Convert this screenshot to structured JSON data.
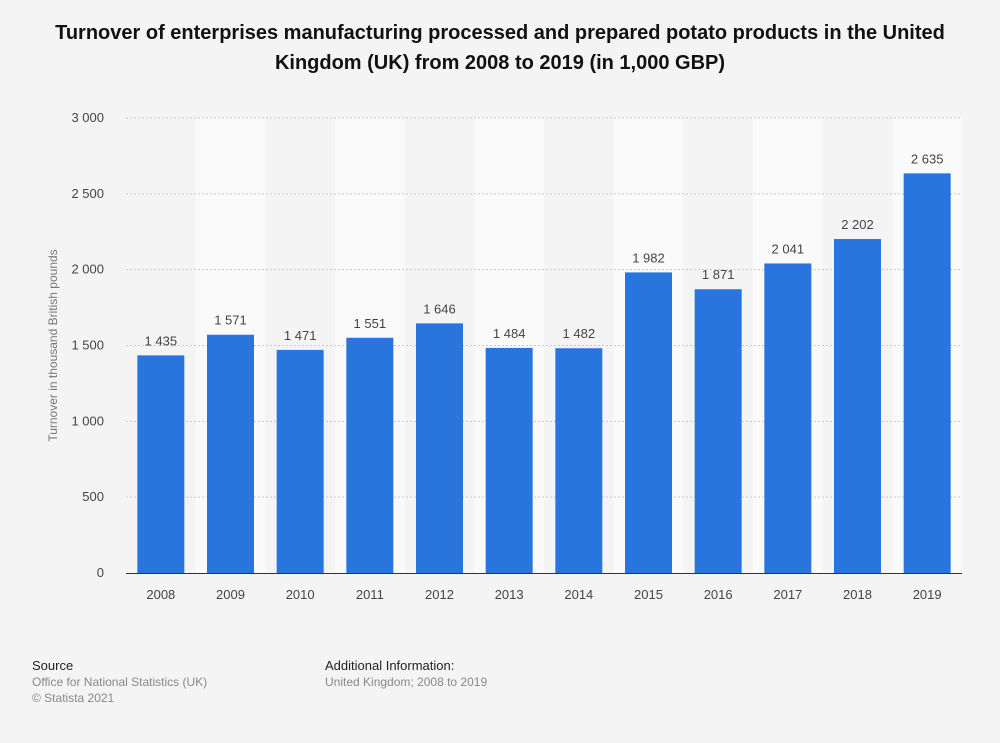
{
  "chart_data": {
    "type": "bar",
    "title": "Turnover of enterprises manufacturing processed and prepared potato products in the United Kingdom (UK) from 2008 to 2019 (in 1,000 GBP)",
    "xlabel": "",
    "ylabel": "Turnover in thousand British pounds",
    "categories": [
      "2008",
      "2009",
      "2010",
      "2011",
      "2012",
      "2013",
      "2014",
      "2015",
      "2016",
      "2017",
      "2018",
      "2019"
    ],
    "values": [
      1435,
      1571,
      1471,
      1551,
      1646,
      1484,
      1482,
      1982,
      1871,
      2041,
      2202,
      2635
    ],
    "value_labels": [
      "1 435",
      "1 571",
      "1 471",
      "1 551",
      "1 646",
      "1 484",
      "1 482",
      "1 982",
      "1 871",
      "2 041",
      "2 202",
      "2 635"
    ],
    "ylim": [
      0,
      3000
    ],
    "yticks": [
      0,
      500,
      1000,
      1500,
      2000,
      2500,
      3000
    ],
    "ytick_labels": [
      "0",
      "500",
      "1 000",
      "1 500",
      "2 000",
      "2 500",
      "3 000"
    ],
    "grid": true,
    "bar_color": "#2876dd"
  },
  "footer": {
    "source_heading": "Source",
    "source_line1": "Office for National Statistics (UK)",
    "source_line2": "© Statista 2021",
    "info_heading": "Additional Information:",
    "info_line1": "United Kingdom; 2008 to 2019"
  }
}
